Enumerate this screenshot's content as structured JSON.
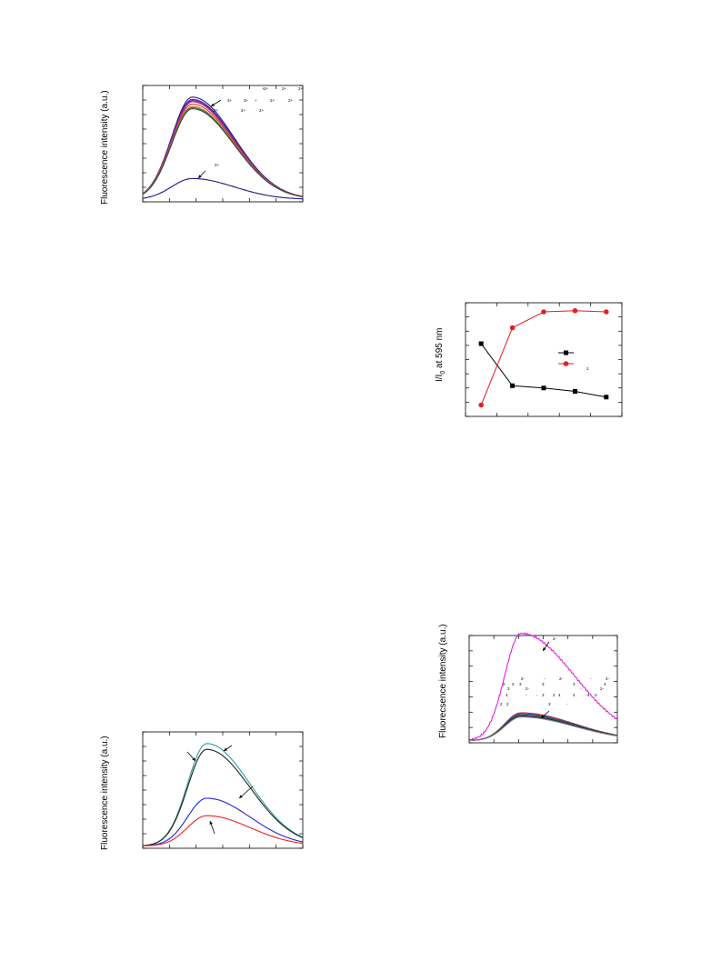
{
  "chart_data": [
    {
      "id": "panel_a",
      "type": "line",
      "ylabel": "Fluorescence intensity (a.u.)",
      "x_range": [
        0,
        10
      ],
      "y_range": [
        0,
        100
      ],
      "legend_fragments": [
        "+",
        "2+",
        "2+",
        "2+",
        "3+",
        "3+",
        "+",
        "2+",
        "2+",
        "2+",
        "2+",
        "2+"
      ],
      "annotation": "2+",
      "series": [
        {
          "color": "#1a1a80",
          "peak": 88
        },
        {
          "color": "#3b2fb0",
          "peak": 86
        },
        {
          "color": "#7a1a7a",
          "peak": 85
        },
        {
          "color": "#a02ca0",
          "peak": 84
        },
        {
          "color": "#e03030",
          "peak": 82
        },
        {
          "color": "#d08020",
          "peak": 80
        },
        {
          "color": "#2a8a3a",
          "peak": 79
        },
        {
          "color": "#404040",
          "peak": 78
        },
        {
          "color": "#1a1a80",
          "peak": 18
        }
      ]
    },
    {
      "id": "panel_b",
      "type": "line",
      "ylabel_main": "I/I",
      "ylabel_sub": "0",
      "ylabel_rest": " at 595 nm",
      "x": [
        1,
        2,
        3,
        4,
        5
      ],
      "y_range": [
        0,
        1
      ],
      "legend_fragments": [
        "",
        "2"
      ],
      "series": [
        {
          "color": "#000000",
          "marker": "square",
          "values": [
            0.64,
            0.27,
            0.25,
            0.22,
            0.17
          ]
        },
        {
          "color": "#e02020",
          "marker": "circle",
          "values": [
            0.1,
            0.78,
            0.92,
            0.93,
            0.92
          ]
        }
      ]
    },
    {
      "id": "panel_c",
      "type": "line",
      "ylabel": "Fluorescence intensity (a.u.)",
      "x_range": [
        0,
        10
      ],
      "y_range": [
        0,
        100
      ],
      "series": [
        {
          "color": "#2aa0a0",
          "peak": 88
        },
        {
          "color": "#222222",
          "peak": 83
        },
        {
          "color": "#2222dd",
          "peak": 41
        },
        {
          "color": "#ee2222",
          "peak": 26
        }
      ]
    },
    {
      "id": "panel_d",
      "type": "line",
      "ylabel": "Fluorecsence intensity (a.u.)",
      "x_range": [
        0,
        10
      ],
      "y_range": [
        0,
        100
      ],
      "annotation": "2-",
      "legend_fragments": [
        "2-",
        "-",
        "2-",
        "-",
        "2-",
        "2",
        "2",
        "3",
        "3",
        "3",
        "4",
        "3",
        "2-",
        "-",
        "2-",
        "-",
        "3",
        "4",
        "-",
        "2",
        "4",
        "-",
        "-",
        "2",
        "4",
        "4",
        "2",
        "2",
        "3",
        "-"
      ],
      "series": [
        {
          "color": "#e020e0",
          "peak": 100
        },
        {
          "color": "#d03030",
          "peak": 26
        },
        {
          "color": "#3030c0",
          "peak": 25
        },
        {
          "color": "#208020",
          "peak": 24
        },
        {
          "color": "#1a1a40",
          "peak": 23
        },
        {
          "color": "#808080",
          "peak": 22
        }
      ]
    }
  ]
}
